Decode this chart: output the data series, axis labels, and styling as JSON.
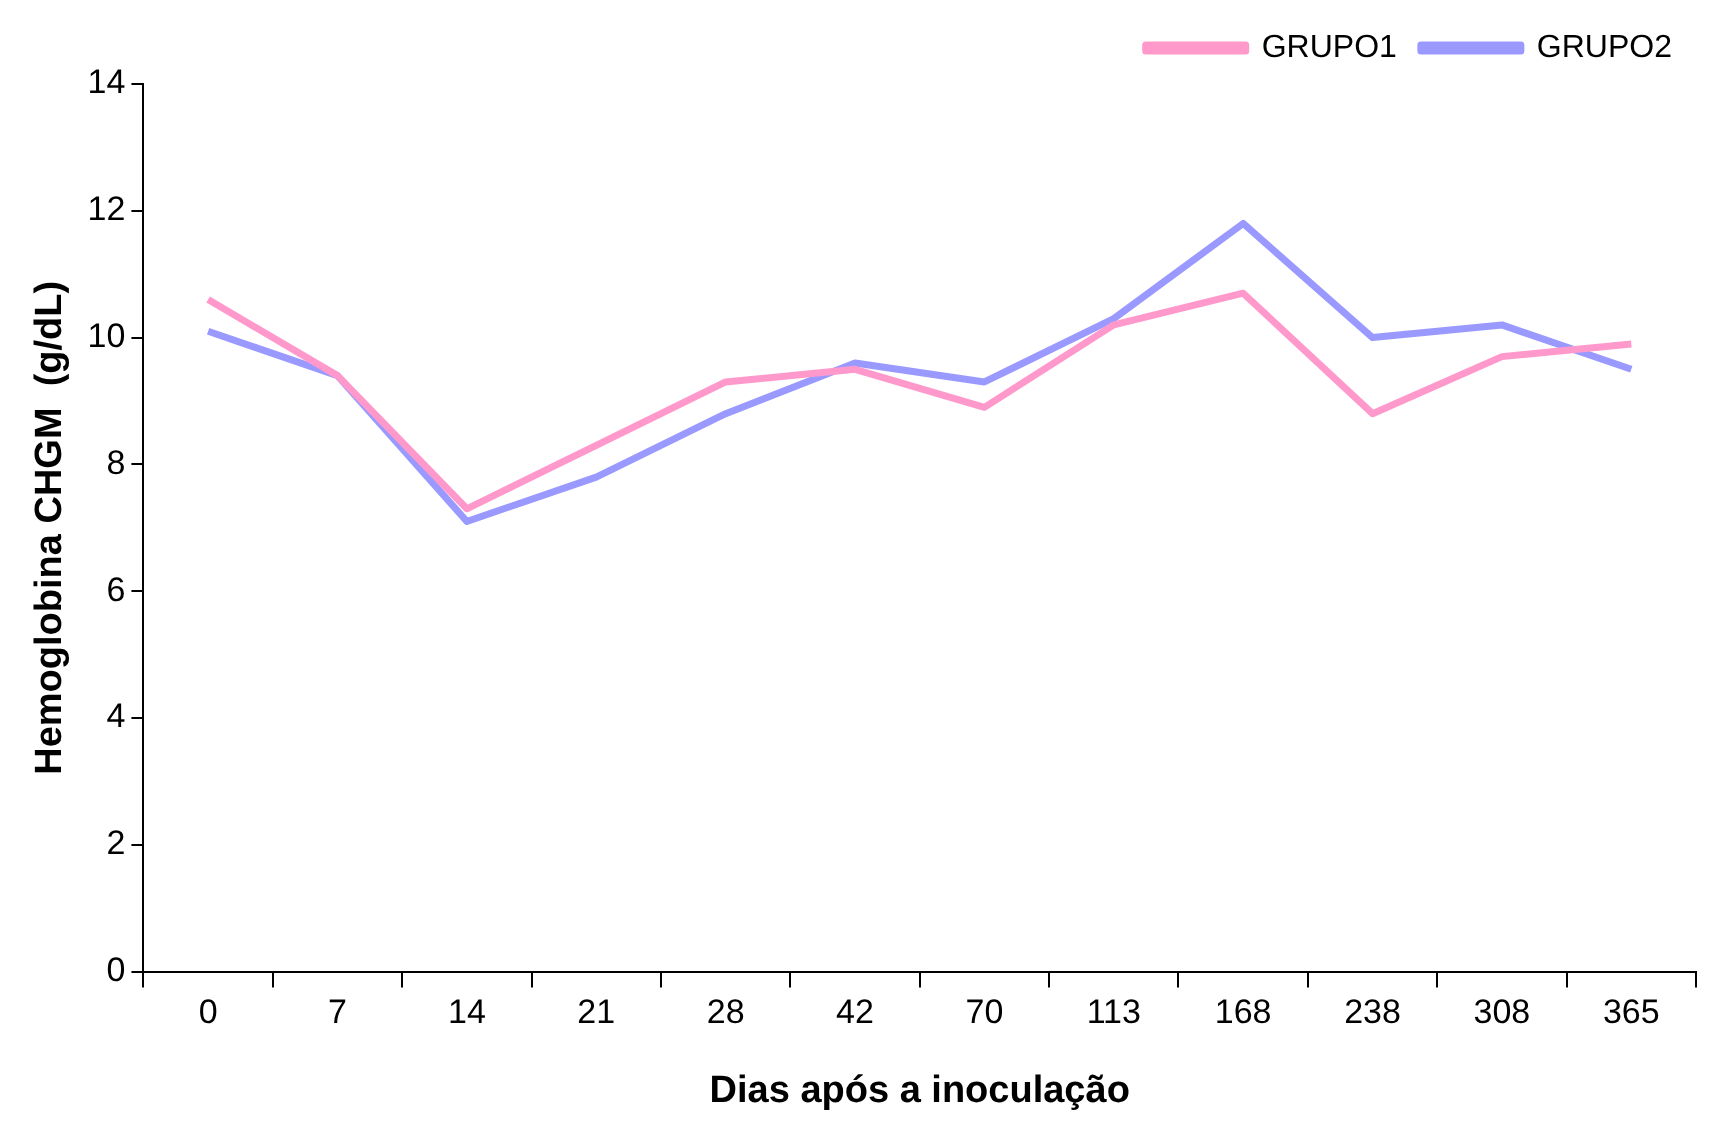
{
  "chart_data": {
    "type": "line",
    "xlabel": "Dias após a inoculação",
    "ylabel": "Hemoglobina CHGM  (g/dL)",
    "categories": [
      "0",
      "7",
      "14",
      "21",
      "28",
      "42",
      "70",
      "113",
      "168",
      "238",
      "308",
      "365"
    ],
    "series": [
      {
        "name": "GRUPO1",
        "color": "#ff99cc",
        "values": [
          10.6,
          9.4,
          7.3,
          8.3,
          9.3,
          9.5,
          8.9,
          10.2,
          10.7,
          8.8,
          9.7,
          9.9
        ]
      },
      {
        "name": "GRUPO2",
        "color": "#9999ff",
        "values": [
          10.1,
          9.4,
          7.1,
          7.8,
          8.8,
          9.6,
          9.3,
          10.3,
          11.8,
          10.0,
          10.2,
          9.5
        ]
      }
    ],
    "ylim": [
      0,
      14
    ],
    "yticks": [
      0,
      2,
      4,
      6,
      8,
      10,
      12,
      14
    ],
    "grid": false,
    "legend": "top right",
    "marker": "none",
    "line_style": "solid"
  }
}
